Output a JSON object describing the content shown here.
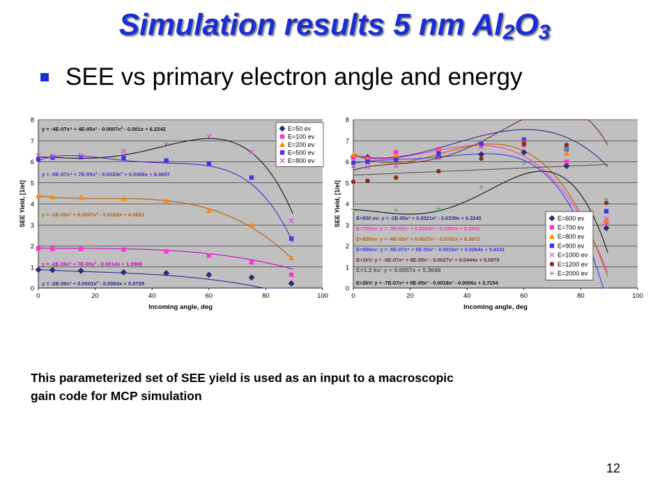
{
  "slide": {
    "title_main": "Simulation results 5 nm Al",
    "title_sub1": "2",
    "title_o": "O",
    "title_sub2": "3",
    "bullet": "SEE vs primary electron angle and energy",
    "note_line1": "This parameterized set of SEE yield is used as an input to a macroscopic",
    "note_line2": "gain code for MCP simulation",
    "page_number": "12"
  },
  "chart_data": [
    {
      "type": "scatter",
      "xlabel": "Incoming angle, deg",
      "ylabel": "SEE Yield, [1/el]",
      "xlim": [
        0,
        100
      ],
      "ylim": [
        0,
        8
      ],
      "xticks": [
        0,
        20,
        40,
        60,
        80,
        100
      ],
      "yticks": [
        0,
        1,
        2,
        3,
        4,
        5,
        6,
        7,
        8
      ],
      "grid": "horizontal",
      "legend_position": "top-right",
      "series": [
        {
          "name": "E=50 ev",
          "color": "#2a2a8a",
          "marker": "diamond",
          "x": [
            0,
            5,
            15,
            30,
            45,
            60,
            75,
            89
          ],
          "y": [
            0.87,
            0.86,
            0.82,
            0.75,
            0.71,
            0.63,
            0.5,
            0.22
          ],
          "fit": [
            0.8729,
            -0.0064,
            0.0001,
            -2e-06
          ],
          "fit_color": "#2a2a8a",
          "equation": "y = -2E-06x³ + 0.0001x² - 0.0064x + 0.8729"
        },
        {
          "name": "E=100 ev",
          "color": "#ff33cc",
          "marker": "square",
          "x": [
            0,
            5,
            15,
            30,
            45,
            60,
            75,
            89
          ],
          "y": [
            1.88,
            1.86,
            1.86,
            1.83,
            1.74,
            1.55,
            1.22,
            0.63
          ],
          "fit": [
            1.8988,
            -0.0014,
            7e-05,
            -2e-06
          ],
          "fit_color": "#cc00cc",
          "equation": "y = -2E-06x³ + 7E-05x² - 0.0014x + 1.8988"
        },
        {
          "name": "E=200 ev",
          "color": "#ff8800",
          "marker": "triangle",
          "x": [
            0,
            5,
            15,
            30,
            45,
            60,
            75,
            89
          ],
          "y": [
            4.38,
            4.33,
            4.3,
            4.25,
            4.15,
            3.68,
            3.0,
            1.43
          ],
          "fit": [
            4.3823,
            -0.0163,
            0.0007,
            -1e-05
          ],
          "fit_color": "#b85e00",
          "equation": "y = -1E-05x³ + 0.0007x² - 0.0163x + 4.3823"
        },
        {
          "name": "E=500 ev",
          "color": "#4433ee",
          "marker": "square",
          "x": [
            0,
            5,
            15,
            30,
            45,
            60,
            75,
            89
          ],
          "y": [
            6.12,
            6.2,
            6.22,
            6.18,
            6.06,
            5.92,
            5.25,
            2.35
          ],
          "fit": [
            6.0657,
            0.0496,
            -0.0033,
            7e-05,
            -5e-07
          ],
          "fit_color": "#5522cc",
          "equation": "y = -5E-07x⁴ + 7E-05x³ - 0.0033x² + 0.0496x + 6.0657"
        },
        {
          "name": "E=800 ev",
          "color": "#cc55cc",
          "marker": "x",
          "x": [
            0,
            5,
            15,
            30,
            45,
            60,
            75,
            89
          ],
          "y": [
            6.3,
            6.28,
            6.3,
            6.5,
            6.85,
            7.2,
            6.45,
            3.2
          ],
          "fit": [
            6.2242,
            -0.001,
            -0.0007,
            4e-05,
            -4e-07
          ],
          "fit_color": "#111111",
          "equation": "y = -4E-07x⁴ + 4E-05x³ - 0.0007x² - 0.001x + 6.2242"
        }
      ]
    },
    {
      "type": "scatter",
      "xlabel": "Incoming angle, deg",
      "ylabel": "SEE Yield, [1/el]",
      "xlim": [
        0,
        100
      ],
      "ylim": [
        0,
        8
      ],
      "xticks": [
        0,
        20,
        40,
        60,
        80,
        100
      ],
      "yticks": [
        0,
        1,
        2,
        3,
        4,
        5,
        6,
        7,
        8
      ],
      "grid": "horizontal",
      "legend_position": "bottom-right",
      "series": [
        {
          "name": "E=600 ev",
          "color": "#2a2a8a",
          "marker": "diamond",
          "x": [
            0,
            5,
            15,
            30,
            45,
            60,
            75,
            89
          ],
          "y": [
            6.25,
            6.22,
            6.2,
            6.25,
            6.35,
            6.45,
            5.8,
            2.85
          ],
          "fit": [
            6.3245,
            -0.0339,
            0.0021,
            -2e-05
          ],
          "fit_color": "#2a2a8a",
          "equation": "E=600 ev: y = -2E-05x³ + 0.0021x² - 0.0339x + 6.3245"
        },
        {
          "name": "E=700 ev",
          "color": "#ff33cc",
          "marker": "square",
          "x": [
            0,
            5,
            15,
            30,
            45,
            60,
            75,
            89
          ],
          "y": [
            6.2,
            6.15,
            6.45,
            6.6,
            6.8,
            6.8,
            6.0,
            3.1
          ],
          "fit": [
            6.2942,
            -0.0365,
            0.0024,
            -3e-05
          ],
          "fit_color": "#ff33cc",
          "equation": "E=700ev: y = -3E-05x³ + 0.0024x² - 0.0365x + 6.2942"
        },
        {
          "name": "E=800 ev",
          "color": "#ff8800",
          "marker": "triangle",
          "x": [
            0,
            5,
            15,
            30,
            45,
            60,
            75,
            89
          ],
          "y": [
            6.35,
            6.1,
            6.3,
            6.5,
            6.9,
            7.0,
            6.4,
            3.2
          ],
          "fit": [
            6.3972,
            -0.0761,
            0.0037,
            -4e-05
          ],
          "fit_color": "#b85e00",
          "equation": "E=800ev: y = -4E-05x³ + 0.0037x² - 0.0761x + 6.3972"
        },
        {
          "name": "E=900 ev",
          "color": "#4433ee",
          "marker": "square",
          "x": [
            0,
            5,
            15,
            30,
            45,
            60,
            75,
            89
          ],
          "y": [
            5.95,
            6.0,
            6.1,
            6.4,
            6.85,
            7.05,
            6.6,
            3.65
          ],
          "fit": [
            5.9241,
            0.0264,
            -0.0016,
            5e-05,
            -5e-07
          ],
          "fit_color": "#4433ee",
          "equation": "E=900ev: y = -5E-07x⁴ + 5E-05x³ - 0.0016x² + 0.0264x + 5.9241"
        },
        {
          "name": "E=1000 ev",
          "color": "#cc55cc",
          "marker": "x",
          "x": [
            0,
            5,
            15,
            30,
            45,
            60,
            75,
            89
          ],
          "y": [
            5.8,
            5.75,
            5.8,
            6.2,
            6.7,
            6.95,
            6.7,
            3.3
          ],
          "fit": [
            5.5978,
            0.0444,
            -0.0027,
            8e-05,
            -6e-07
          ],
          "fit_color": "#6b2a2a",
          "equation": "E=1kV: y = -6E-07x⁴ + 8E-05x³ - 0.0027x² + 0.0444x + 5.5978"
        },
        {
          "name": "E=1200 ev",
          "color": "#8a2a1a",
          "marker": "circle",
          "x": [
            0,
            5,
            15,
            30,
            45,
            60,
            75,
            89
          ],
          "y": [
            5.05,
            5.1,
            5.25,
            5.55,
            6.15,
            6.85,
            6.8,
            4.05
          ],
          "fit": [
            5.3646,
            0.0057
          ],
          "fit_color": "#555555",
          "equation": "E=1.2 kv: y = 0.0057x + 5.3646"
        },
        {
          "name": "E=2000 ev",
          "color": "#55aa77",
          "marker": "plus",
          "x": [
            0,
            15,
            30,
            45,
            60,
            75,
            89
          ],
          "y": [
            3.75,
            3.72,
            3.78,
            4.8,
            5.95,
            6.6,
            4.2
          ],
          "fit": [
            3.7154,
            -0.0006,
            -0.0018,
            8e-05,
            -7e-07
          ],
          "fit_color": "#111111",
          "equation": "E=2kV: y = -7E-07x⁴ + 8E-05x³ - 0.0018x² - 0.0006x + 3.7154"
        }
      ]
    }
  ]
}
